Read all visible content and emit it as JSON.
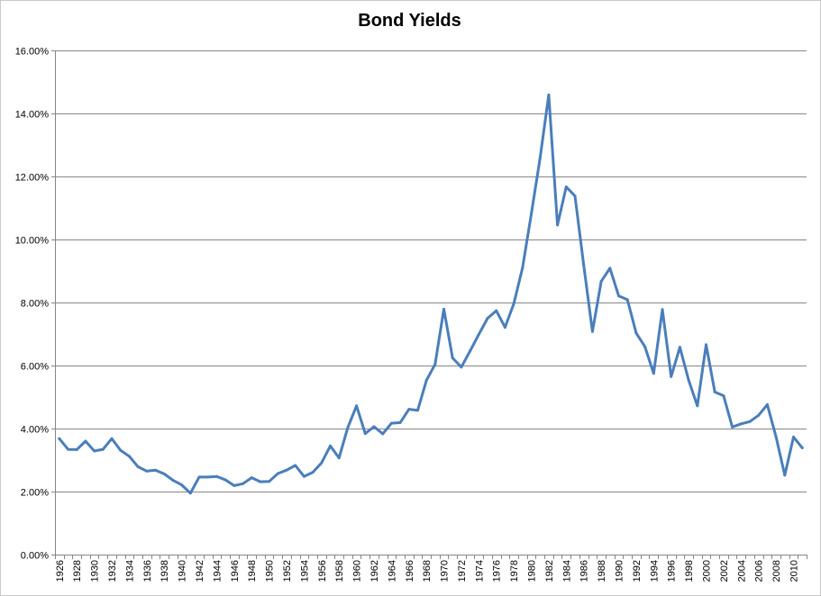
{
  "chart_data": {
    "type": "line",
    "title": "Bond Yields",
    "xlabel": "",
    "ylabel": "",
    "ylim": [
      0,
      16
    ],
    "yticks": [
      "0.00%",
      "2.00%",
      "4.00%",
      "6.00%",
      "8.00%",
      "10.00%",
      "12.00%",
      "14.00%",
      "16.00%"
    ],
    "xticks": [
      "1926",
      "1928",
      "1930",
      "1932",
      "1934",
      "1936",
      "1938",
      "1940",
      "1942",
      "1944",
      "1946",
      "1948",
      "1950",
      "1952",
      "1954",
      "1956",
      "1958",
      "1960",
      "1962",
      "1964",
      "1966",
      "1968",
      "1970",
      "1972",
      "1974",
      "1976",
      "1978",
      "1980",
      "1982",
      "1984",
      "1986",
      "1988",
      "1990",
      "1992",
      "1994",
      "1996",
      "1998",
      "2000",
      "2002",
      "2004",
      "2006",
      "2008",
      "2010"
    ],
    "grid": "horizontal",
    "line_color": "#4a7ebb",
    "series": [
      {
        "name": "",
        "x": [
          1926,
          1927,
          1928,
          1929,
          1930,
          1931,
          1932,
          1933,
          1934,
          1935,
          1936,
          1937,
          1938,
          1939,
          1940,
          1941,
          1942,
          1943,
          1944,
          1945,
          1946,
          1947,
          1948,
          1949,
          1950,
          1951,
          1952,
          1953,
          1954,
          1955,
          1956,
          1957,
          1958,
          1959,
          1960,
          1961,
          1962,
          1963,
          1964,
          1965,
          1966,
          1967,
          1968,
          1969,
          1970,
          1971,
          1972,
          1973,
          1974,
          1975,
          1976,
          1977,
          1978,
          1979,
          1980,
          1981,
          1982,
          1983,
          1984,
          1985,
          1986,
          1987,
          1988,
          1989,
          1990,
          1991,
          1992,
          1993,
          1994,
          1995,
          1996,
          1997,
          1998,
          1999,
          2000,
          2001,
          2002,
          2003,
          2004,
          2005,
          2006,
          2007,
          2008,
          2009,
          2010,
          2011
        ],
        "values": [
          3.68,
          3.34,
          3.33,
          3.6,
          3.29,
          3.34,
          3.68,
          3.31,
          3.12,
          2.79,
          2.65,
          2.68,
          2.56,
          2.36,
          2.21,
          1.95,
          2.46,
          2.46,
          2.48,
          2.37,
          2.19,
          2.25,
          2.44,
          2.31,
          2.32,
          2.57,
          2.68,
          2.83,
          2.48,
          2.61,
          2.91,
          3.45,
          3.07,
          4.03,
          4.72,
          3.84,
          4.06,
          3.83,
          4.17,
          4.19,
          4.61,
          4.58,
          5.53,
          6.04,
          7.79,
          6.24,
          5.95,
          6.46,
          6.99,
          7.5,
          7.74,
          7.21,
          7.96,
          9.1,
          10.8,
          12.57,
          14.59,
          10.46,
          11.67,
          11.38,
          9.19,
          7.08,
          8.67,
          9.09,
          8.21,
          8.09,
          7.03,
          6.6,
          5.75,
          7.78,
          5.65,
          6.58,
          5.54,
          4.72,
          6.66,
          5.16,
          5.04,
          4.05,
          4.15,
          4.22,
          4.42,
          4.76,
          3.74,
          2.52,
          3.73,
          3.39
        ]
      }
    ]
  }
}
